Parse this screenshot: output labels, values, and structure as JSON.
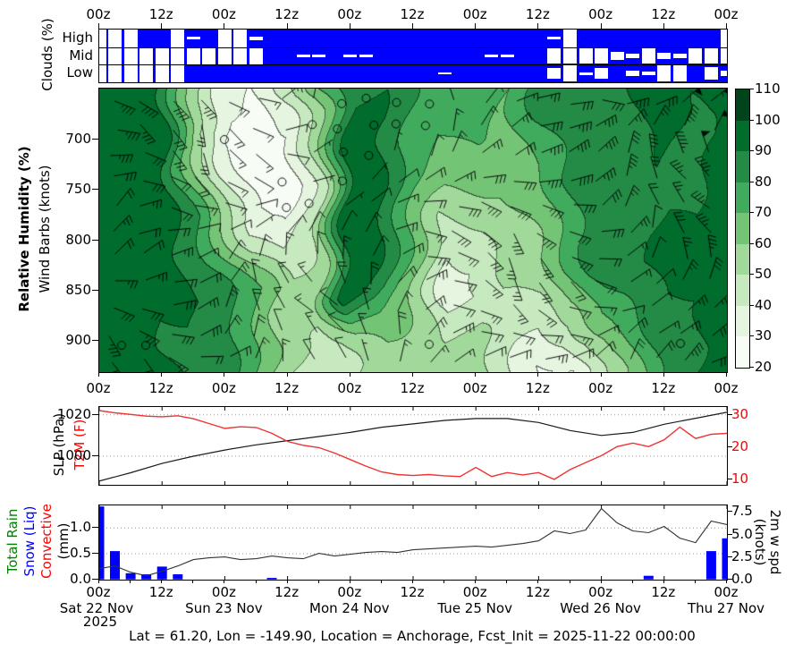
{
  "figure": {
    "caption": "Lat = 61.20, Lon = -149.90, Location = Anchorage, Fcst_Init = 2025-11-22 00:00:00"
  },
  "time_axis": {
    "tick_labels": [
      "00z",
      "12z",
      "00z",
      "12z",
      "00z",
      "12z",
      "00z",
      "12z",
      "00z",
      "12z",
      "00z"
    ],
    "date_labels": [
      "Sat 22 Nov",
      "Sun 23 Nov",
      "Mon 24 Nov",
      "Tue 25 Nov",
      "Wed 26 Nov",
      "Thu 27 Nov"
    ],
    "year": "2025",
    "hours_span": 120,
    "step_hours_major": 12
  },
  "clouds_panel": {
    "ylabel": "Clouds (%)",
    "row_labels": [
      "High",
      "Mid",
      "Low"
    ],
    "cloud_color": "#0000ff"
  },
  "rh_panel": {
    "ylabel_line1": "Relative Humidity (%)",
    "ylabel_line2": "Wind Barbs (knots)",
    "pressure_tick_labels": [
      "700",
      "750",
      "800",
      "850",
      "900"
    ],
    "colorbar_tick_labels": [
      "110",
      "100",
      "90",
      "80",
      "70",
      "60",
      "50",
      "40",
      "30",
      "20"
    ]
  },
  "slp_panel": {
    "ylabel_slp": "SLP (hPa)",
    "ylabel_t2m": "T2M (F)",
    "left_tick_labels": [
      "1020",
      "1000"
    ],
    "right_tick_labels": [
      "30",
      "20",
      "10"
    ]
  },
  "precip_panel": {
    "ylabel_rain": "Total Rain",
    "ylabel_snow": "Snow (Liq)",
    "ylabel_conv": "Convective",
    "ylabel_unit": "(mm)",
    "left_tick_labels": [
      "1.0",
      "0.5",
      "0.0"
    ],
    "right_tick_labels": [
      "7.5",
      "5.0",
      "2.5",
      "0.0"
    ],
    "right_label_line1": "2m w spd",
    "right_label_line2": "(knots)"
  },
  "chart_data": [
    {
      "id": "clouds",
      "type": "heatmap",
      "title": "Clouds (%)",
      "rows": [
        "High",
        "Mid",
        "Low"
      ],
      "x_start_hour": 0,
      "x_step_hours": 3,
      "cloud_color": "#0000ff",
      "clear_fraction": {
        "high": [
          1,
          1,
          1,
          0,
          0,
          1,
          0.15,
          0,
          1,
          1,
          0.2,
          0,
          0,
          0,
          0,
          0,
          0,
          0,
          0,
          0,
          0,
          0,
          0,
          0,
          0,
          0,
          0,
          0,
          0,
          0.15,
          1,
          0,
          0,
          0,
          0,
          0,
          0,
          0,
          0,
          0,
          1
        ],
        "mid": [
          1,
          1,
          1,
          1,
          1,
          1,
          1,
          1,
          1,
          1,
          1,
          0,
          0,
          0.15,
          0.15,
          0,
          0.15,
          0.15,
          0,
          0,
          0,
          0,
          0,
          0,
          0,
          0.15,
          0.15,
          0,
          0,
          0.9,
          0.9,
          0.9,
          0.9,
          0.5,
          0.3,
          0.9,
          0.4,
          0.3,
          0.9,
          0.9,
          0.9
        ],
        "low": [
          1,
          1,
          1,
          1,
          1,
          1,
          0,
          0,
          0,
          0,
          0,
          0,
          0,
          0,
          0,
          0,
          0,
          0,
          0,
          0,
          0,
          0,
          0.12,
          0,
          0,
          0,
          0,
          0,
          0,
          0.6,
          0.9,
          0.15,
          0.6,
          0,
          0.3,
          0.2,
          0.9,
          0.9,
          0,
          0.7,
          0.3
        ]
      }
    },
    {
      "id": "rh_wind",
      "type": "heatmap",
      "ylabel": "Relative Humidity (%)",
      "ylabel2": "Wind Barbs (knots)",
      "yticks_hpa": [
        700,
        750,
        800,
        850,
        900
      ],
      "ylim_hpa": [
        930,
        648
      ],
      "x_step_hours": 6,
      "levels": [
        20,
        30,
        40,
        50,
        60,
        70,
        80,
        90,
        100,
        110
      ],
      "colorbar_colors": [
        "#f7fcf5",
        "#e5f5e0",
        "#c7e9c0",
        "#a1d99b",
        "#74c476",
        "#41ab5d",
        "#238b45",
        "#006d2c",
        "#00441b"
      ],
      "rh_grid_pressures": [
        650,
        675,
        700,
        725,
        750,
        775,
        800,
        825,
        850,
        875,
        900,
        930
      ],
      "rh_grid": [
        [
          95,
          92,
          90,
          60,
          35,
          30,
          45,
          70,
          88,
          90,
          80,
          75,
          80,
          70,
          85,
          90,
          85,
          90,
          95,
          90,
          95
        ],
        [
          95,
          92,
          92,
          55,
          32,
          27,
          35,
          60,
          90,
          92,
          78,
          72,
          78,
          68,
          80,
          88,
          85,
          88,
          95,
          88,
          95
        ],
        [
          95,
          93,
          95,
          50,
          28,
          24,
          28,
          55,
          92,
          90,
          75,
          70,
          72,
          65,
          75,
          85,
          88,
          85,
          92,
          82,
          95
        ],
        [
          97,
          94,
          95,
          60,
          35,
          25,
          25,
          50,
          95,
          90,
          72,
          65,
          65,
          62,
          70,
          82,
          88,
          82,
          90,
          85,
          96
        ],
        [
          97,
          95,
          96,
          70,
          45,
          28,
          24,
          45,
          98,
          92,
          70,
          60,
          60,
          60,
          65,
          80,
          85,
          80,
          88,
          88,
          97
        ],
        [
          98,
          95,
          96,
          80,
          55,
          32,
          28,
          48,
          100,
          92,
          70,
          50,
          52,
          58,
          62,
          78,
          85,
          82,
          90,
          90,
          97
        ],
        [
          98,
          96,
          95,
          85,
          68,
          45,
          35,
          50,
          100,
          90,
          68,
          42,
          45,
          55,
          60,
          75,
          88,
          85,
          92,
          92,
          98
        ],
        [
          98,
          96,
          93,
          88,
          78,
          58,
          45,
          55,
          100,
          88,
          65,
          38,
          40,
          52,
          55,
          70,
          85,
          88,
          92,
          92,
          98
        ],
        [
          97,
          95,
          92,
          90,
          83,
          70,
          55,
          58,
          98,
          85,
          62,
          36,
          40,
          50,
          50,
          62,
          78,
          85,
          90,
          90,
          97
        ],
        [
          97,
          94,
          90,
          90,
          85,
          72,
          52,
          50,
          75,
          70,
          58,
          45,
          48,
          48,
          42,
          50,
          68,
          78,
          88,
          88,
          96
        ],
        [
          96,
          94,
          90,
          88,
          85,
          70,
          55,
          45,
          55,
          60,
          55,
          52,
          55,
          45,
          32,
          38,
          55,
          70,
          85,
          88,
          95
        ],
        [
          96,
          95,
          92,
          88,
          85,
          68,
          50,
          42,
          45,
          55,
          55,
          55,
          58,
          42,
          28,
          30,
          50,
          65,
          82,
          90,
          95
        ]
      ],
      "wind_barbs": {
        "cols": 22,
        "rows": 11,
        "seed": 42,
        "note": "barbs procedurally placed; 5-55 kt, strongest at right edge; open circles = calm"
      }
    },
    {
      "id": "slp_t2m",
      "type": "line",
      "series": [
        {
          "name": "SLP (hPa)",
          "color": "#1a1a1a",
          "x_step_hours": 6,
          "values": [
            988,
            992,
            996.5,
            1000,
            1003,
            1005.5,
            1007.5,
            1009.5,
            1011.5,
            1014,
            1015.6,
            1017.3,
            1018.2,
            1018.2,
            1016.3,
            1012.4,
            1010,
            1011.5,
            1015.4,
            1018.3,
            1021.2
          ]
        },
        {
          "name": "T2M (F)",
          "color": "#ee3333",
          "x_step_hours": 3,
          "values": [
            31.3,
            30.6,
            30.1,
            29.6,
            29.4,
            29.7,
            28.8,
            27.3,
            25.8,
            26.3,
            26.1,
            24.3,
            21.8,
            20.6,
            19.9,
            18.2,
            16.2,
            14.2,
            12.4,
            11.6,
            11.3,
            11.6,
            11.2,
            11.0,
            13.8,
            11.0,
            12.2,
            11.5,
            12.2,
            10.1,
            13.1,
            15.3,
            17.4,
            20.2,
            21.3,
            20.2,
            22.3,
            26.2,
            22.7,
            24.0,
            24.3
          ]
        }
      ],
      "left_axis": {
        "ticks": [
          1020,
          1000
        ],
        "units": "hPa"
      },
      "right_axis": {
        "ticks": [
          30,
          20,
          10
        ],
        "units": "F"
      },
      "grid": "dotted horizontal at 1020 and 1000 hPa"
    },
    {
      "id": "precip_wind",
      "type": "bar+line",
      "bars": {
        "name": "Snow (Liq)",
        "color": "#0000ff",
        "x_step_hours": 3,
        "units": "mm",
        "values": [
          1.42,
          0.55,
          0.12,
          0.1,
          0.25,
          0.1,
          0,
          0,
          0,
          0,
          0,
          0.03,
          0,
          0,
          0,
          0,
          0,
          0,
          0,
          0,
          0,
          0,
          0,
          0,
          0,
          0,
          0,
          0,
          0,
          0,
          0,
          0,
          0,
          0,
          0,
          0.07,
          0,
          0,
          0,
          0.55,
          0.8
        ]
      },
      "rain_values_mm": "all zero (no green bars visible)",
      "convective_values_mm": "all zero (no red bars visible)",
      "line": {
        "name": "2m w spd (knots)",
        "color": "#333333",
        "x_step_hours": 3,
        "values": [
          1.2,
          1.5,
          0.8,
          0.4,
          0.9,
          1.5,
          2.2,
          2.4,
          2.5,
          2.2,
          2.3,
          2.6,
          2.4,
          2.3,
          2.9,
          2.6,
          2.8,
          3.0,
          3.1,
          3.0,
          3.3,
          3.4,
          3.5,
          3.6,
          3.7,
          3.6,
          3.8,
          4.0,
          4.3,
          5.4,
          5.1,
          5.5,
          7.9,
          6.3,
          5.4,
          5.2,
          5.9,
          4.6,
          4.1,
          6.5,
          6.1
        ]
      },
      "left_axis": {
        "ticks": [
          1.0,
          0.5,
          0.0
        ],
        "units": "mm"
      },
      "right_axis": {
        "ticks": [
          7.5,
          5.0,
          2.5,
          0.0
        ],
        "units": "knots"
      },
      "grid": "dotted horizontal at 0.5 and 1.0 mm"
    }
  ]
}
